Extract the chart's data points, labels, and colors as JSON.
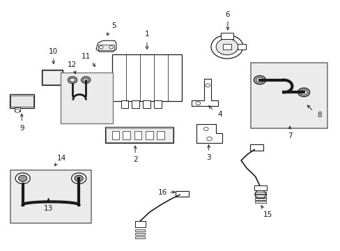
{
  "bg_color": "#ffffff",
  "line_color": "#1a1a1a",
  "box_fill": "#e8e8e8",
  "label_fontsize": 7.5,
  "parts": {
    "1": {
      "lxy": [
        0.43,
        0.87
      ],
      "astart": [
        0.43,
        0.845
      ],
      "aend": [
        0.43,
        0.8
      ]
    },
    "2": {
      "lxy": [
        0.395,
        0.36
      ],
      "astart": [
        0.395,
        0.382
      ],
      "aend": [
        0.395,
        0.428
      ]
    },
    "3": {
      "lxy": [
        0.615,
        0.37
      ],
      "astart": [
        0.615,
        0.392
      ],
      "aend": [
        0.615,
        0.432
      ]
    },
    "4": {
      "lxy": [
        0.648,
        0.545
      ],
      "astart": [
        0.63,
        0.56
      ],
      "aend": [
        0.61,
        0.588
      ]
    },
    "5": {
      "lxy": [
        0.332,
        0.905
      ],
      "astart": [
        0.318,
        0.882
      ],
      "aend": [
        0.305,
        0.858
      ]
    },
    "6": {
      "lxy": [
        0.672,
        0.952
      ],
      "astart": [
        0.672,
        0.93
      ],
      "aend": [
        0.672,
        0.878
      ]
    },
    "7": {
      "lxy": [
        0.858,
        0.458
      ],
      "astart": [
        0.858,
        0.478
      ],
      "aend": [
        0.858,
        0.508
      ]
    },
    "8": {
      "lxy": [
        0.947,
        0.542
      ],
      "astart": [
        0.928,
        0.558
      ],
      "aend": [
        0.905,
        0.59
      ]
    },
    "9": {
      "lxy": [
        0.055,
        0.49
      ],
      "astart": [
        0.055,
        0.512
      ],
      "aend": [
        0.055,
        0.558
      ]
    },
    "10": {
      "lxy": [
        0.15,
        0.8
      ],
      "astart": [
        0.15,
        0.778
      ],
      "aend": [
        0.15,
        0.74
      ]
    },
    "11": {
      "lxy": [
        0.248,
        0.782
      ],
      "astart": [
        0.265,
        0.762
      ],
      "aend": [
        0.278,
        0.73
      ]
    },
    "12": {
      "lxy": [
        0.205,
        0.748
      ],
      "astart": [
        0.212,
        0.728
      ],
      "aend": [
        0.218,
        0.7
      ]
    },
    "13": {
      "lxy": [
        0.135,
        0.162
      ],
      "astart": [
        0.135,
        0.182
      ],
      "aend": [
        0.135,
        0.215
      ]
    },
    "14": {
      "lxy": [
        0.175,
        0.368
      ],
      "astart": [
        0.162,
        0.35
      ],
      "aend": [
        0.148,
        0.328
      ]
    },
    "15": {
      "lxy": [
        0.792,
        0.138
      ],
      "astart": [
        0.78,
        0.158
      ],
      "aend": [
        0.768,
        0.183
      ]
    },
    "16": {
      "lxy": [
        0.476,
        0.228
      ],
      "astart": [
        0.494,
        0.228
      ],
      "aend": [
        0.522,
        0.23
      ]
    }
  }
}
